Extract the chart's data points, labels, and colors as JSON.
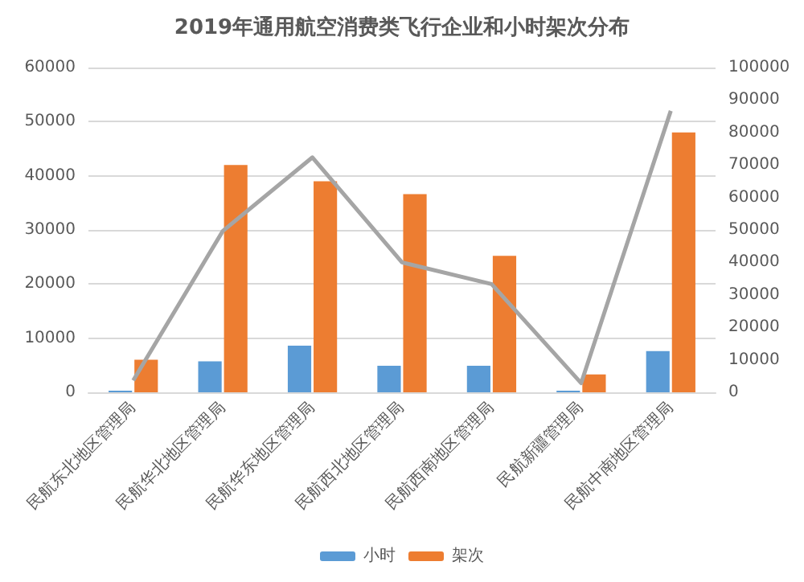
{
  "chart_data": {
    "type": "bar",
    "title": "2019年通用航空消费类飞行企业和小时架次分布",
    "categories": [
      "民航东北地区管理局",
      "民航华北地区管理局",
      "民航华东地区管理局",
      "民航西北地区管理局",
      "民航西南地区管理局",
      "民航新疆管理局",
      "民航中南地区管理局"
    ],
    "series": [
      {
        "name": "小时",
        "color": "#5b9bd5",
        "values": [
          300,
          5700,
          8600,
          4900,
          4900,
          300,
          7600
        ]
      },
      {
        "name": "架次",
        "color": "#ed7d31",
        "axis": "y2",
        "values": [
          10000,
          70000,
          65000,
          61000,
          42000,
          5500,
          80000
        ]
      },
      {
        "type": "line",
        "color": "#a5a5a5",
        "values": [
          2200,
          29800,
          43400,
          24000,
          20000,
          1700,
          52000
        ]
      }
    ],
    "ylim": [
      0,
      60000
    ],
    "yticks": [
      0,
      10000,
      20000,
      30000,
      40000,
      50000,
      60000
    ],
    "y2lim": [
      0,
      100000
    ],
    "y2ticks": [
      0,
      10000,
      20000,
      30000,
      40000,
      50000,
      60000,
      70000,
      80000,
      90000,
      100000
    ],
    "grid": "y",
    "legend": "bottom",
    "marker": "none"
  }
}
